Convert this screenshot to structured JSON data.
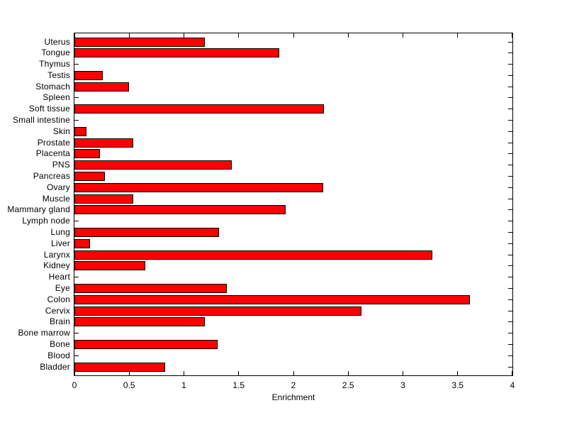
{
  "chart_data": {
    "type": "bar",
    "orientation": "horizontal",
    "title": "",
    "xlabel": "Enrichment",
    "ylabel": "",
    "xlim": [
      0,
      4
    ],
    "xticks": [
      0,
      0.5,
      1,
      1.5,
      2,
      2.5,
      3,
      3.5,
      4
    ],
    "xtick_labels": [
      "0",
      "0.5",
      "1",
      "1.5",
      "2",
      "2.5",
      "3",
      "3.5",
      "4"
    ],
    "grid": false,
    "legend": null,
    "bar_color": "#ff0000",
    "bar_edge_color": "#000000",
    "background_color": "#ffffff",
    "axis_color": "#000000",
    "categories": [
      "Uterus",
      "Tongue",
      "Thymus",
      "Testis",
      "Stomach",
      "Spleen",
      "Soft tissue",
      "Small intestine",
      "Skin",
      "Prostate",
      "Placenta",
      "PNS",
      "Pancreas",
      "Ovary",
      "Muscle",
      "Mammary gland",
      "Lymph node",
      "Lung",
      "Liver",
      "Larynx",
      "Kidney",
      "Heart",
      "Eye",
      "Colon",
      "Cervix",
      "Brain",
      "Bone marrow",
      "Bone",
      "Blood",
      "Bladder"
    ],
    "values": [
      1.19,
      1.87,
      0,
      0.26,
      0.5,
      0,
      2.28,
      0,
      0.11,
      0.54,
      0.23,
      1.44,
      0.28,
      2.27,
      0.54,
      1.93,
      0,
      1.32,
      0.14,
      3.27,
      0.65,
      0,
      1.39,
      3.61,
      2.62,
      1.19,
      0,
      1.31,
      0,
      0.83
    ]
  }
}
